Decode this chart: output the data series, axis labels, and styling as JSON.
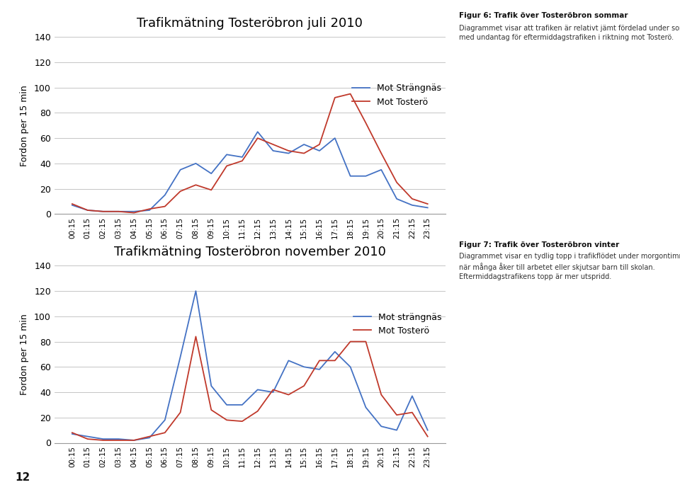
{
  "time_labels": [
    "00:15",
    "01:15",
    "02:15",
    "03:15",
    "04:15",
    "05:15",
    "06:15",
    "07:15",
    "08:15",
    "09:15",
    "10:15",
    "11:15",
    "12:15",
    "13:15",
    "14:15",
    "15:15",
    "16:15",
    "17:15",
    "18:15",
    "19:15",
    "20:15",
    "21:15",
    "22:15",
    "23:15"
  ],
  "july_strangnas": [
    7,
    3,
    2,
    2,
    2,
    3,
    15,
    35,
    40,
    32,
    47,
    45,
    65,
    50,
    48,
    55,
    50,
    60,
    30,
    30,
    35,
    12,
    7,
    5
  ],
  "july_tostero": [
    8,
    3,
    2,
    2,
    1,
    4,
    6,
    18,
    23,
    19,
    38,
    42,
    60,
    55,
    50,
    48,
    55,
    92,
    95,
    72,
    48,
    25,
    12,
    8
  ],
  "nov_strangnas": [
    7,
    5,
    3,
    3,
    2,
    4,
    18,
    68,
    120,
    45,
    30,
    30,
    42,
    40,
    65,
    60,
    58,
    72,
    60,
    28,
    13,
    10,
    37,
    10
  ],
  "nov_tostero": [
    8,
    3,
    2,
    2,
    2,
    5,
    8,
    24,
    84,
    26,
    18,
    17,
    25,
    42,
    38,
    45,
    65,
    65,
    80,
    80,
    38,
    22,
    24,
    5
  ],
  "title_july": "Trafikmätning Tosteröbron juli 2010",
  "title_nov": "Trafikmätning Tosteröbron november 2010",
  "ylabel": "Fordon per 15 min",
  "ylim": [
    0,
    140
  ],
  "yticks": [
    0,
    20,
    40,
    60,
    80,
    100,
    120,
    140
  ],
  "color_strangnas": "#4472c4",
  "color_tostero": "#c0392b",
  "legend_july_1": "Mot Strängnäs",
  "legend_july_2": "Mot Tosterö",
  "legend_nov_1": "Mot strängnäs",
  "legend_nov_2": "Mot Tosterö",
  "fig6_title": "Figur 6: Trafik över Tosteröbron sommar",
  "fig6_text": "Diagrammet visar att trafiken är relativt jämt fördelad under sommaren\nmed undantag för eftermiddagstrafiken i riktning mot Tosterö.",
  "fig7_title": "Figur 7: Trafik över Tosteröbron vinter",
  "fig7_text": "Diagrammet visar en tydlig topp i trafikflödet under morgontimmarna\nnär många åker till arbetet eller skjutsar barn till skolan.\nEftermiddagstrafikens topp är mer utspridd.",
  "background": "#ffffff",
  "page_number": "12"
}
